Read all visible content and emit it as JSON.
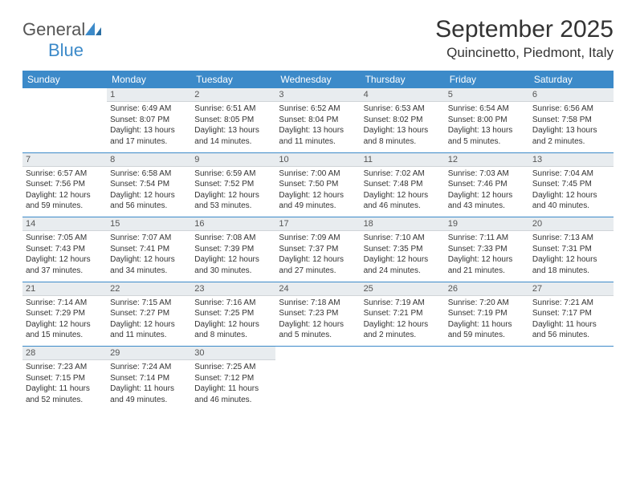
{
  "logo": {
    "text1": "General",
    "text2": "Blue"
  },
  "title": "September 2025",
  "location": "Quincinetto, Piedmont, Italy",
  "colors": {
    "accent": "#3c8ac9",
    "daynum_bg": "#e8ecef",
    "text": "#333333",
    "bg": "#ffffff"
  },
  "day_headers": [
    "Sunday",
    "Monday",
    "Tuesday",
    "Wednesday",
    "Thursday",
    "Friday",
    "Saturday"
  ],
  "weeks": [
    [
      {
        "n": "",
        "sr": "",
        "ss": "",
        "dl": ""
      },
      {
        "n": "1",
        "sr": "Sunrise: 6:49 AM",
        "ss": "Sunset: 8:07 PM",
        "dl": "Daylight: 13 hours and 17 minutes."
      },
      {
        "n": "2",
        "sr": "Sunrise: 6:51 AM",
        "ss": "Sunset: 8:05 PM",
        "dl": "Daylight: 13 hours and 14 minutes."
      },
      {
        "n": "3",
        "sr": "Sunrise: 6:52 AM",
        "ss": "Sunset: 8:04 PM",
        "dl": "Daylight: 13 hours and 11 minutes."
      },
      {
        "n": "4",
        "sr": "Sunrise: 6:53 AM",
        "ss": "Sunset: 8:02 PM",
        "dl": "Daylight: 13 hours and 8 minutes."
      },
      {
        "n": "5",
        "sr": "Sunrise: 6:54 AM",
        "ss": "Sunset: 8:00 PM",
        "dl": "Daylight: 13 hours and 5 minutes."
      },
      {
        "n": "6",
        "sr": "Sunrise: 6:56 AM",
        "ss": "Sunset: 7:58 PM",
        "dl": "Daylight: 13 hours and 2 minutes."
      }
    ],
    [
      {
        "n": "7",
        "sr": "Sunrise: 6:57 AM",
        "ss": "Sunset: 7:56 PM",
        "dl": "Daylight: 12 hours and 59 minutes."
      },
      {
        "n": "8",
        "sr": "Sunrise: 6:58 AM",
        "ss": "Sunset: 7:54 PM",
        "dl": "Daylight: 12 hours and 56 minutes."
      },
      {
        "n": "9",
        "sr": "Sunrise: 6:59 AM",
        "ss": "Sunset: 7:52 PM",
        "dl": "Daylight: 12 hours and 53 minutes."
      },
      {
        "n": "10",
        "sr": "Sunrise: 7:00 AM",
        "ss": "Sunset: 7:50 PM",
        "dl": "Daylight: 12 hours and 49 minutes."
      },
      {
        "n": "11",
        "sr": "Sunrise: 7:02 AM",
        "ss": "Sunset: 7:48 PM",
        "dl": "Daylight: 12 hours and 46 minutes."
      },
      {
        "n": "12",
        "sr": "Sunrise: 7:03 AM",
        "ss": "Sunset: 7:46 PM",
        "dl": "Daylight: 12 hours and 43 minutes."
      },
      {
        "n": "13",
        "sr": "Sunrise: 7:04 AM",
        "ss": "Sunset: 7:45 PM",
        "dl": "Daylight: 12 hours and 40 minutes."
      }
    ],
    [
      {
        "n": "14",
        "sr": "Sunrise: 7:05 AM",
        "ss": "Sunset: 7:43 PM",
        "dl": "Daylight: 12 hours and 37 minutes."
      },
      {
        "n": "15",
        "sr": "Sunrise: 7:07 AM",
        "ss": "Sunset: 7:41 PM",
        "dl": "Daylight: 12 hours and 34 minutes."
      },
      {
        "n": "16",
        "sr": "Sunrise: 7:08 AM",
        "ss": "Sunset: 7:39 PM",
        "dl": "Daylight: 12 hours and 30 minutes."
      },
      {
        "n": "17",
        "sr": "Sunrise: 7:09 AM",
        "ss": "Sunset: 7:37 PM",
        "dl": "Daylight: 12 hours and 27 minutes."
      },
      {
        "n": "18",
        "sr": "Sunrise: 7:10 AM",
        "ss": "Sunset: 7:35 PM",
        "dl": "Daylight: 12 hours and 24 minutes."
      },
      {
        "n": "19",
        "sr": "Sunrise: 7:11 AM",
        "ss": "Sunset: 7:33 PM",
        "dl": "Daylight: 12 hours and 21 minutes."
      },
      {
        "n": "20",
        "sr": "Sunrise: 7:13 AM",
        "ss": "Sunset: 7:31 PM",
        "dl": "Daylight: 12 hours and 18 minutes."
      }
    ],
    [
      {
        "n": "21",
        "sr": "Sunrise: 7:14 AM",
        "ss": "Sunset: 7:29 PM",
        "dl": "Daylight: 12 hours and 15 minutes."
      },
      {
        "n": "22",
        "sr": "Sunrise: 7:15 AM",
        "ss": "Sunset: 7:27 PM",
        "dl": "Daylight: 12 hours and 11 minutes."
      },
      {
        "n": "23",
        "sr": "Sunrise: 7:16 AM",
        "ss": "Sunset: 7:25 PM",
        "dl": "Daylight: 12 hours and 8 minutes."
      },
      {
        "n": "24",
        "sr": "Sunrise: 7:18 AM",
        "ss": "Sunset: 7:23 PM",
        "dl": "Daylight: 12 hours and 5 minutes."
      },
      {
        "n": "25",
        "sr": "Sunrise: 7:19 AM",
        "ss": "Sunset: 7:21 PM",
        "dl": "Daylight: 12 hours and 2 minutes."
      },
      {
        "n": "26",
        "sr": "Sunrise: 7:20 AM",
        "ss": "Sunset: 7:19 PM",
        "dl": "Daylight: 11 hours and 59 minutes."
      },
      {
        "n": "27",
        "sr": "Sunrise: 7:21 AM",
        "ss": "Sunset: 7:17 PM",
        "dl": "Daylight: 11 hours and 56 minutes."
      }
    ],
    [
      {
        "n": "28",
        "sr": "Sunrise: 7:23 AM",
        "ss": "Sunset: 7:15 PM",
        "dl": "Daylight: 11 hours and 52 minutes."
      },
      {
        "n": "29",
        "sr": "Sunrise: 7:24 AM",
        "ss": "Sunset: 7:14 PM",
        "dl": "Daylight: 11 hours and 49 minutes."
      },
      {
        "n": "30",
        "sr": "Sunrise: 7:25 AM",
        "ss": "Sunset: 7:12 PM",
        "dl": "Daylight: 11 hours and 46 minutes."
      },
      {
        "n": "",
        "sr": "",
        "ss": "",
        "dl": ""
      },
      {
        "n": "",
        "sr": "",
        "ss": "",
        "dl": ""
      },
      {
        "n": "",
        "sr": "",
        "ss": "",
        "dl": ""
      },
      {
        "n": "",
        "sr": "",
        "ss": "",
        "dl": ""
      }
    ]
  ]
}
